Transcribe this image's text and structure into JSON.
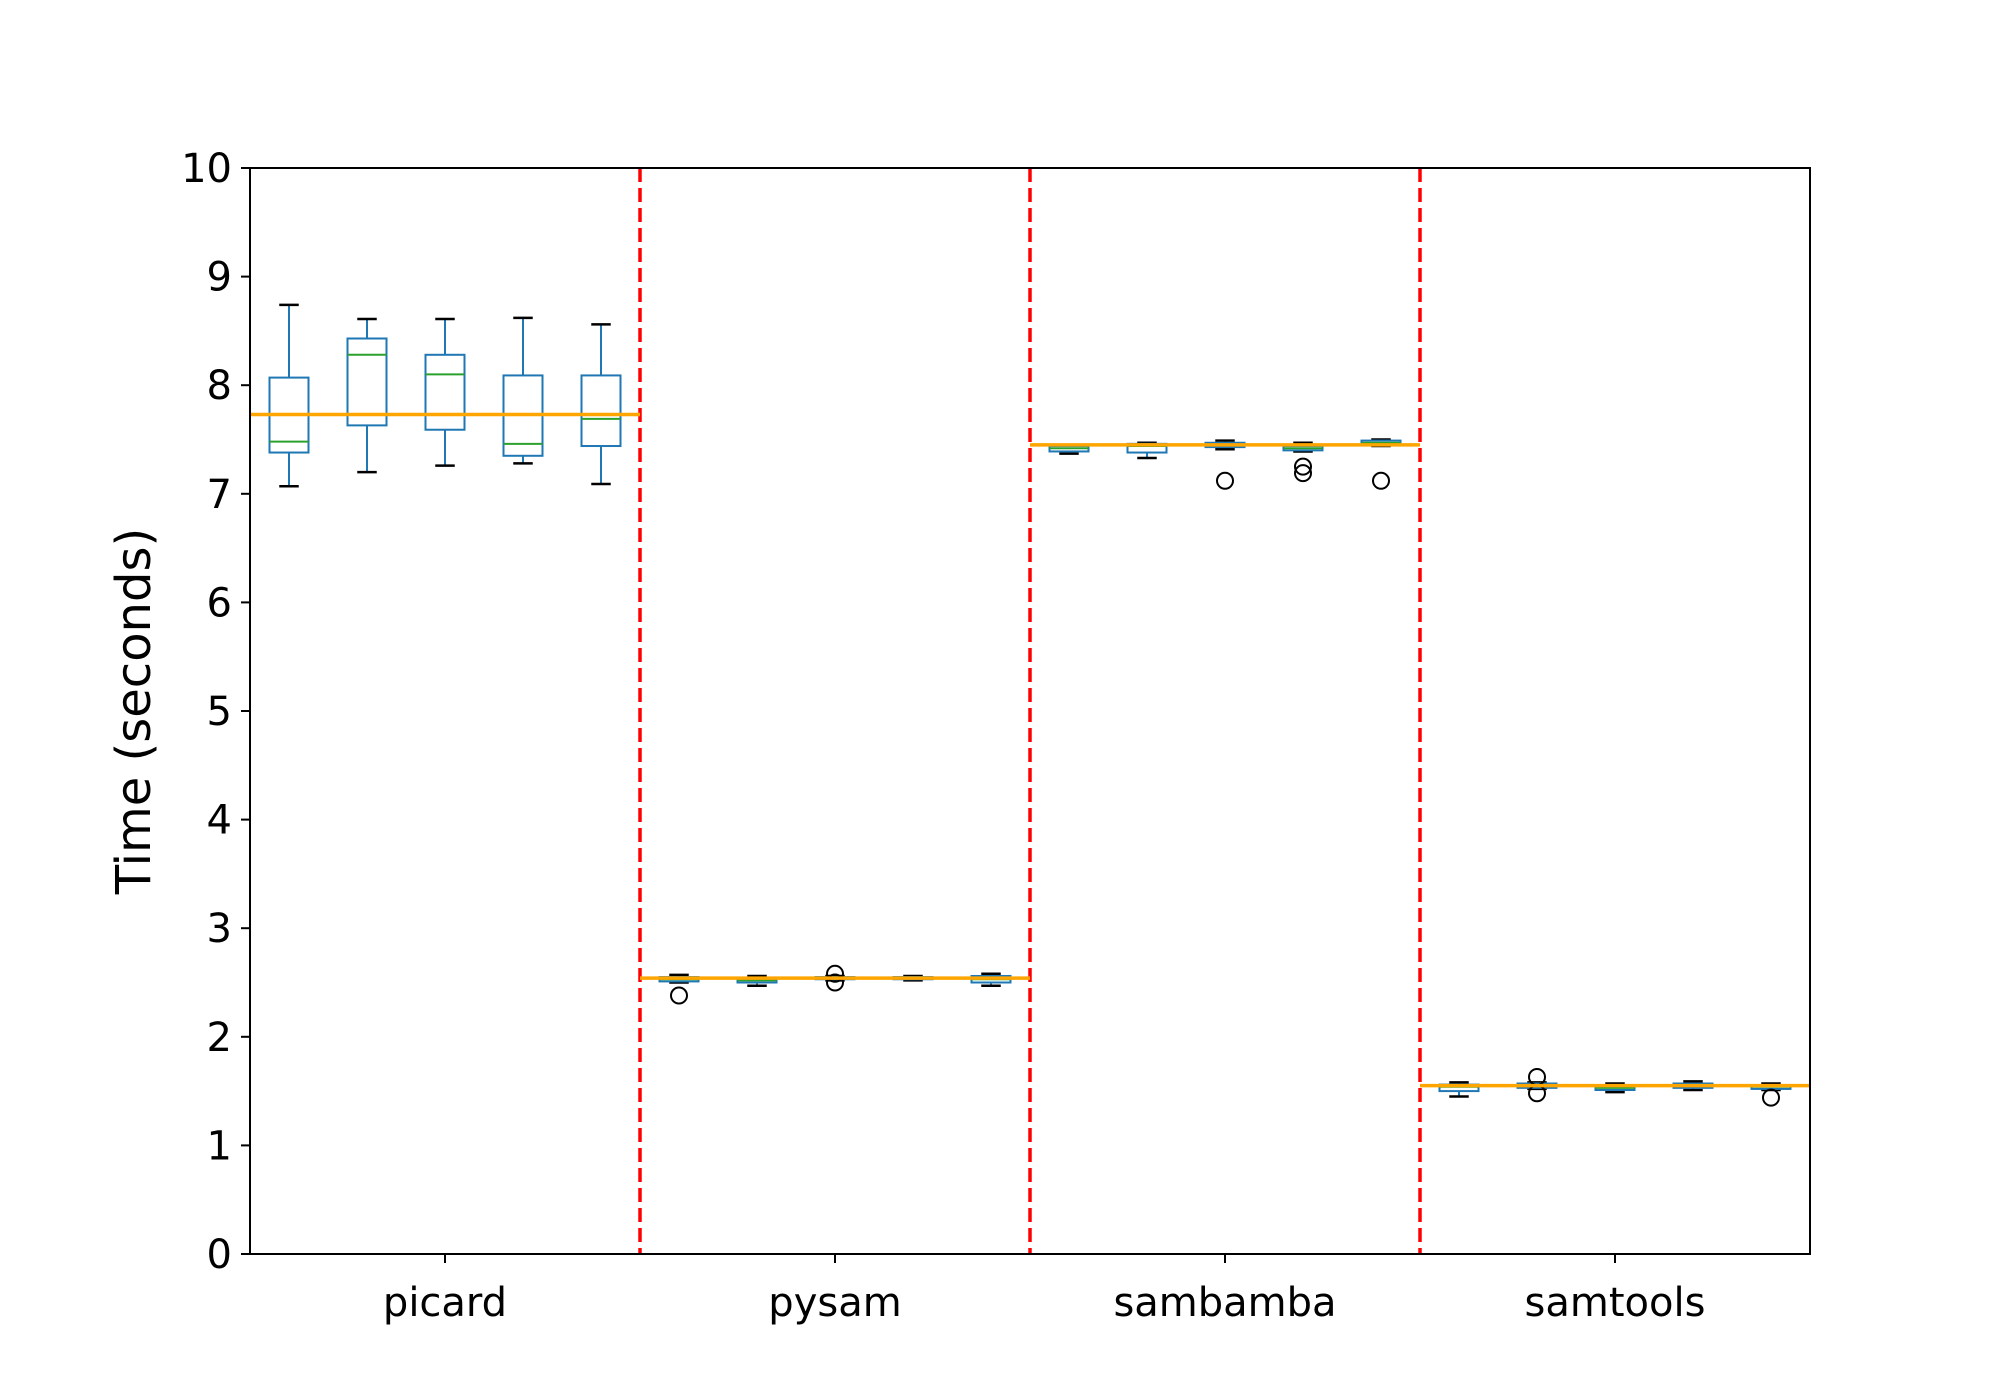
{
  "chart_data": {
    "type": "box",
    "title": "",
    "xlabel": "",
    "ylabel": "Time (seconds)",
    "ylim": [
      0,
      10
    ],
    "yticks": [
      "0",
      "1",
      "2",
      "3",
      "4",
      "5",
      "6",
      "7",
      "8",
      "9",
      "10"
    ],
    "categories": [
      "picard",
      "pysam",
      "sambamba",
      "samtools"
    ],
    "boxes_per_group": 5,
    "colors": {
      "box": "#1f77b4",
      "median": "#2ca02c",
      "mean_line": "#ffa500",
      "separator": "#ff0000",
      "whisker_cap": "#000000"
    },
    "groups": [
      {
        "name": "picard",
        "mean": 7.73,
        "boxes": [
          {
            "whislo": 7.07,
            "q1": 7.38,
            "med": 7.48,
            "q3": 8.07,
            "whishi": 8.74,
            "fliers": []
          },
          {
            "whislo": 7.2,
            "q1": 7.63,
            "med": 8.28,
            "q3": 8.43,
            "whishi": 8.61,
            "fliers": []
          },
          {
            "whislo": 7.26,
            "q1": 7.59,
            "med": 8.1,
            "q3": 8.28,
            "whishi": 8.61,
            "fliers": []
          },
          {
            "whislo": 7.28,
            "q1": 7.35,
            "med": 7.46,
            "q3": 8.09,
            "whishi": 8.62,
            "fliers": []
          },
          {
            "whislo": 7.09,
            "q1": 7.44,
            "med": 7.69,
            "q3": 8.09,
            "whishi": 8.56,
            "fliers": []
          }
        ]
      },
      {
        "name": "pysam",
        "mean": 2.54,
        "boxes": [
          {
            "whislo": 2.5,
            "q1": 2.51,
            "med": 2.53,
            "q3": 2.55,
            "whishi": 2.57,
            "fliers": [
              2.38
            ]
          },
          {
            "whislo": 2.47,
            "q1": 2.5,
            "med": 2.52,
            "q3": 2.54,
            "whishi": 2.56,
            "fliers": []
          },
          {
            "whislo": 2.52,
            "q1": 2.53,
            "med": 2.54,
            "q3": 2.55,
            "whishi": 2.56,
            "fliers": [
              2.58,
              2.5
            ]
          },
          {
            "whislo": 2.52,
            "q1": 2.53,
            "med": 2.54,
            "q3": 2.55,
            "whishi": 2.56,
            "fliers": []
          },
          {
            "whislo": 2.47,
            "q1": 2.5,
            "med": 2.53,
            "q3": 2.56,
            "whishi": 2.58,
            "fliers": []
          }
        ]
      },
      {
        "name": "sambamba",
        "mean": 7.45,
        "boxes": [
          {
            "whislo": 7.37,
            "q1": 7.39,
            "med": 7.42,
            "q3": 7.44,
            "whishi": 7.45,
            "fliers": []
          },
          {
            "whislo": 7.33,
            "q1": 7.38,
            "med": 7.44,
            "q3": 7.46,
            "whishi": 7.47,
            "fliers": []
          },
          {
            "whislo": 7.41,
            "q1": 7.43,
            "med": 7.45,
            "q3": 7.47,
            "whishi": 7.49,
            "fliers": [
              7.12
            ]
          },
          {
            "whislo": 7.39,
            "q1": 7.4,
            "med": 7.42,
            "q3": 7.44,
            "whishi": 7.47,
            "fliers": [
              7.25,
              7.19
            ]
          },
          {
            "whislo": 7.44,
            "q1": 7.45,
            "med": 7.47,
            "q3": 7.49,
            "whishi": 7.5,
            "fliers": [
              7.12
            ]
          }
        ]
      },
      {
        "name": "samtools",
        "mean": 1.55,
        "boxes": [
          {
            "whislo": 1.45,
            "q1": 1.5,
            "med": 1.54,
            "q3": 1.56,
            "whishi": 1.58,
            "fliers": []
          },
          {
            "whislo": 1.52,
            "q1": 1.53,
            "med": 1.55,
            "q3": 1.57,
            "whishi": 1.58,
            "fliers": [
              1.63,
              1.48
            ]
          },
          {
            "whislo": 1.49,
            "q1": 1.51,
            "med": 1.53,
            "q3": 1.55,
            "whishi": 1.57,
            "fliers": []
          },
          {
            "whislo": 1.51,
            "q1": 1.53,
            "med": 1.55,
            "q3": 1.57,
            "whishi": 1.59,
            "fliers": []
          },
          {
            "whislo": 1.51,
            "q1": 1.52,
            "med": 1.54,
            "q3": 1.55,
            "whishi": 1.57,
            "fliers": [
              1.44
            ]
          }
        ]
      }
    ]
  }
}
